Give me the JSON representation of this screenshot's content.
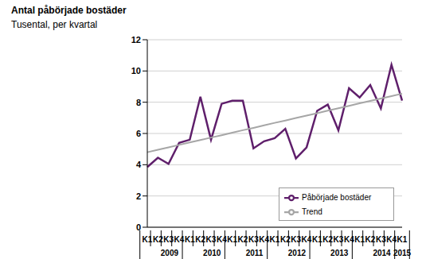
{
  "chart_data": {
    "type": "line",
    "title": "Antal påbörjade bostäder",
    "subtitle": "Tusental, per kvartal",
    "categories": [
      "K1",
      "K2",
      "K3",
      "K4",
      "K1",
      "K2",
      "K3",
      "K4",
      "K1",
      "K2",
      "K3",
      "K4",
      "K1",
      "K2",
      "K3",
      "K4",
      "K1",
      "K2",
      "K3",
      "K4",
      "K1",
      "K2",
      "K3",
      "K4",
      "K1"
    ],
    "years": [
      "2009",
      "2010",
      "2011",
      "2012",
      "2013",
      "2014",
      "2015"
    ],
    "series": [
      {
        "name": "Påbörjade bostäder",
        "color": "#5f1f6b",
        "values": [
          3.85,
          4.45,
          4.05,
          5.4,
          5.6,
          8.35,
          5.6,
          7.9,
          8.1,
          8.1,
          5.05,
          5.5,
          5.7,
          6.3,
          4.4,
          5.1,
          7.45,
          7.85,
          6.2,
          8.9,
          8.3,
          9.1,
          7.6,
          10.4,
          8.1
        ]
      },
      {
        "name": "Trend",
        "color": "#a6a6a6",
        "values": [
          4.8,
          4.96,
          5.11,
          5.27,
          5.43,
          5.58,
          5.74,
          5.89,
          6.05,
          6.21,
          6.36,
          6.52,
          6.68,
          6.83,
          6.99,
          7.14,
          7.3,
          7.46,
          7.61,
          7.77,
          7.93,
          8.08,
          8.24,
          8.39,
          8.55
        ]
      }
    ],
    "ylim": [
      0,
      12
    ],
    "yticks": [
      0,
      2,
      4,
      6,
      8,
      10,
      12
    ],
    "grid": true,
    "legend": "lower right"
  }
}
